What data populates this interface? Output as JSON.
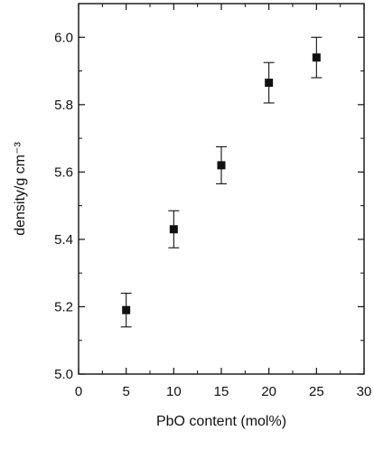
{
  "chart_data": {
    "type": "scatter",
    "title": "",
    "xlabel": "PbO content (mol%)",
    "ylabel": "density/g cm⁻³",
    "xlim": [
      0,
      30
    ],
    "ylim": [
      5.0,
      6.1
    ],
    "xticks": [
      0,
      5,
      10,
      15,
      20,
      25,
      30
    ],
    "xtick_labels": [
      "0",
      "5",
      "10",
      "15",
      "20",
      "25",
      "30"
    ],
    "yticks": [
      5.0,
      5.2,
      5.4,
      5.6,
      5.8,
      6.0
    ],
    "ytick_labels": [
      "5.0",
      "5.2",
      "5.4",
      "5.6",
      "5.8",
      "6.0"
    ],
    "grid": false,
    "marker": "square",
    "points": [
      {
        "x": 5,
        "y": 5.19,
        "err": 0.05
      },
      {
        "x": 10,
        "y": 5.43,
        "err": 0.055
      },
      {
        "x": 15,
        "y": 5.62,
        "err": 0.055
      },
      {
        "x": 20,
        "y": 5.865,
        "err": 0.06
      },
      {
        "x": 25,
        "y": 5.94,
        "err": 0.06
      }
    ]
  },
  "colors": {
    "marker": "#111111",
    "axis": "#111111"
  }
}
